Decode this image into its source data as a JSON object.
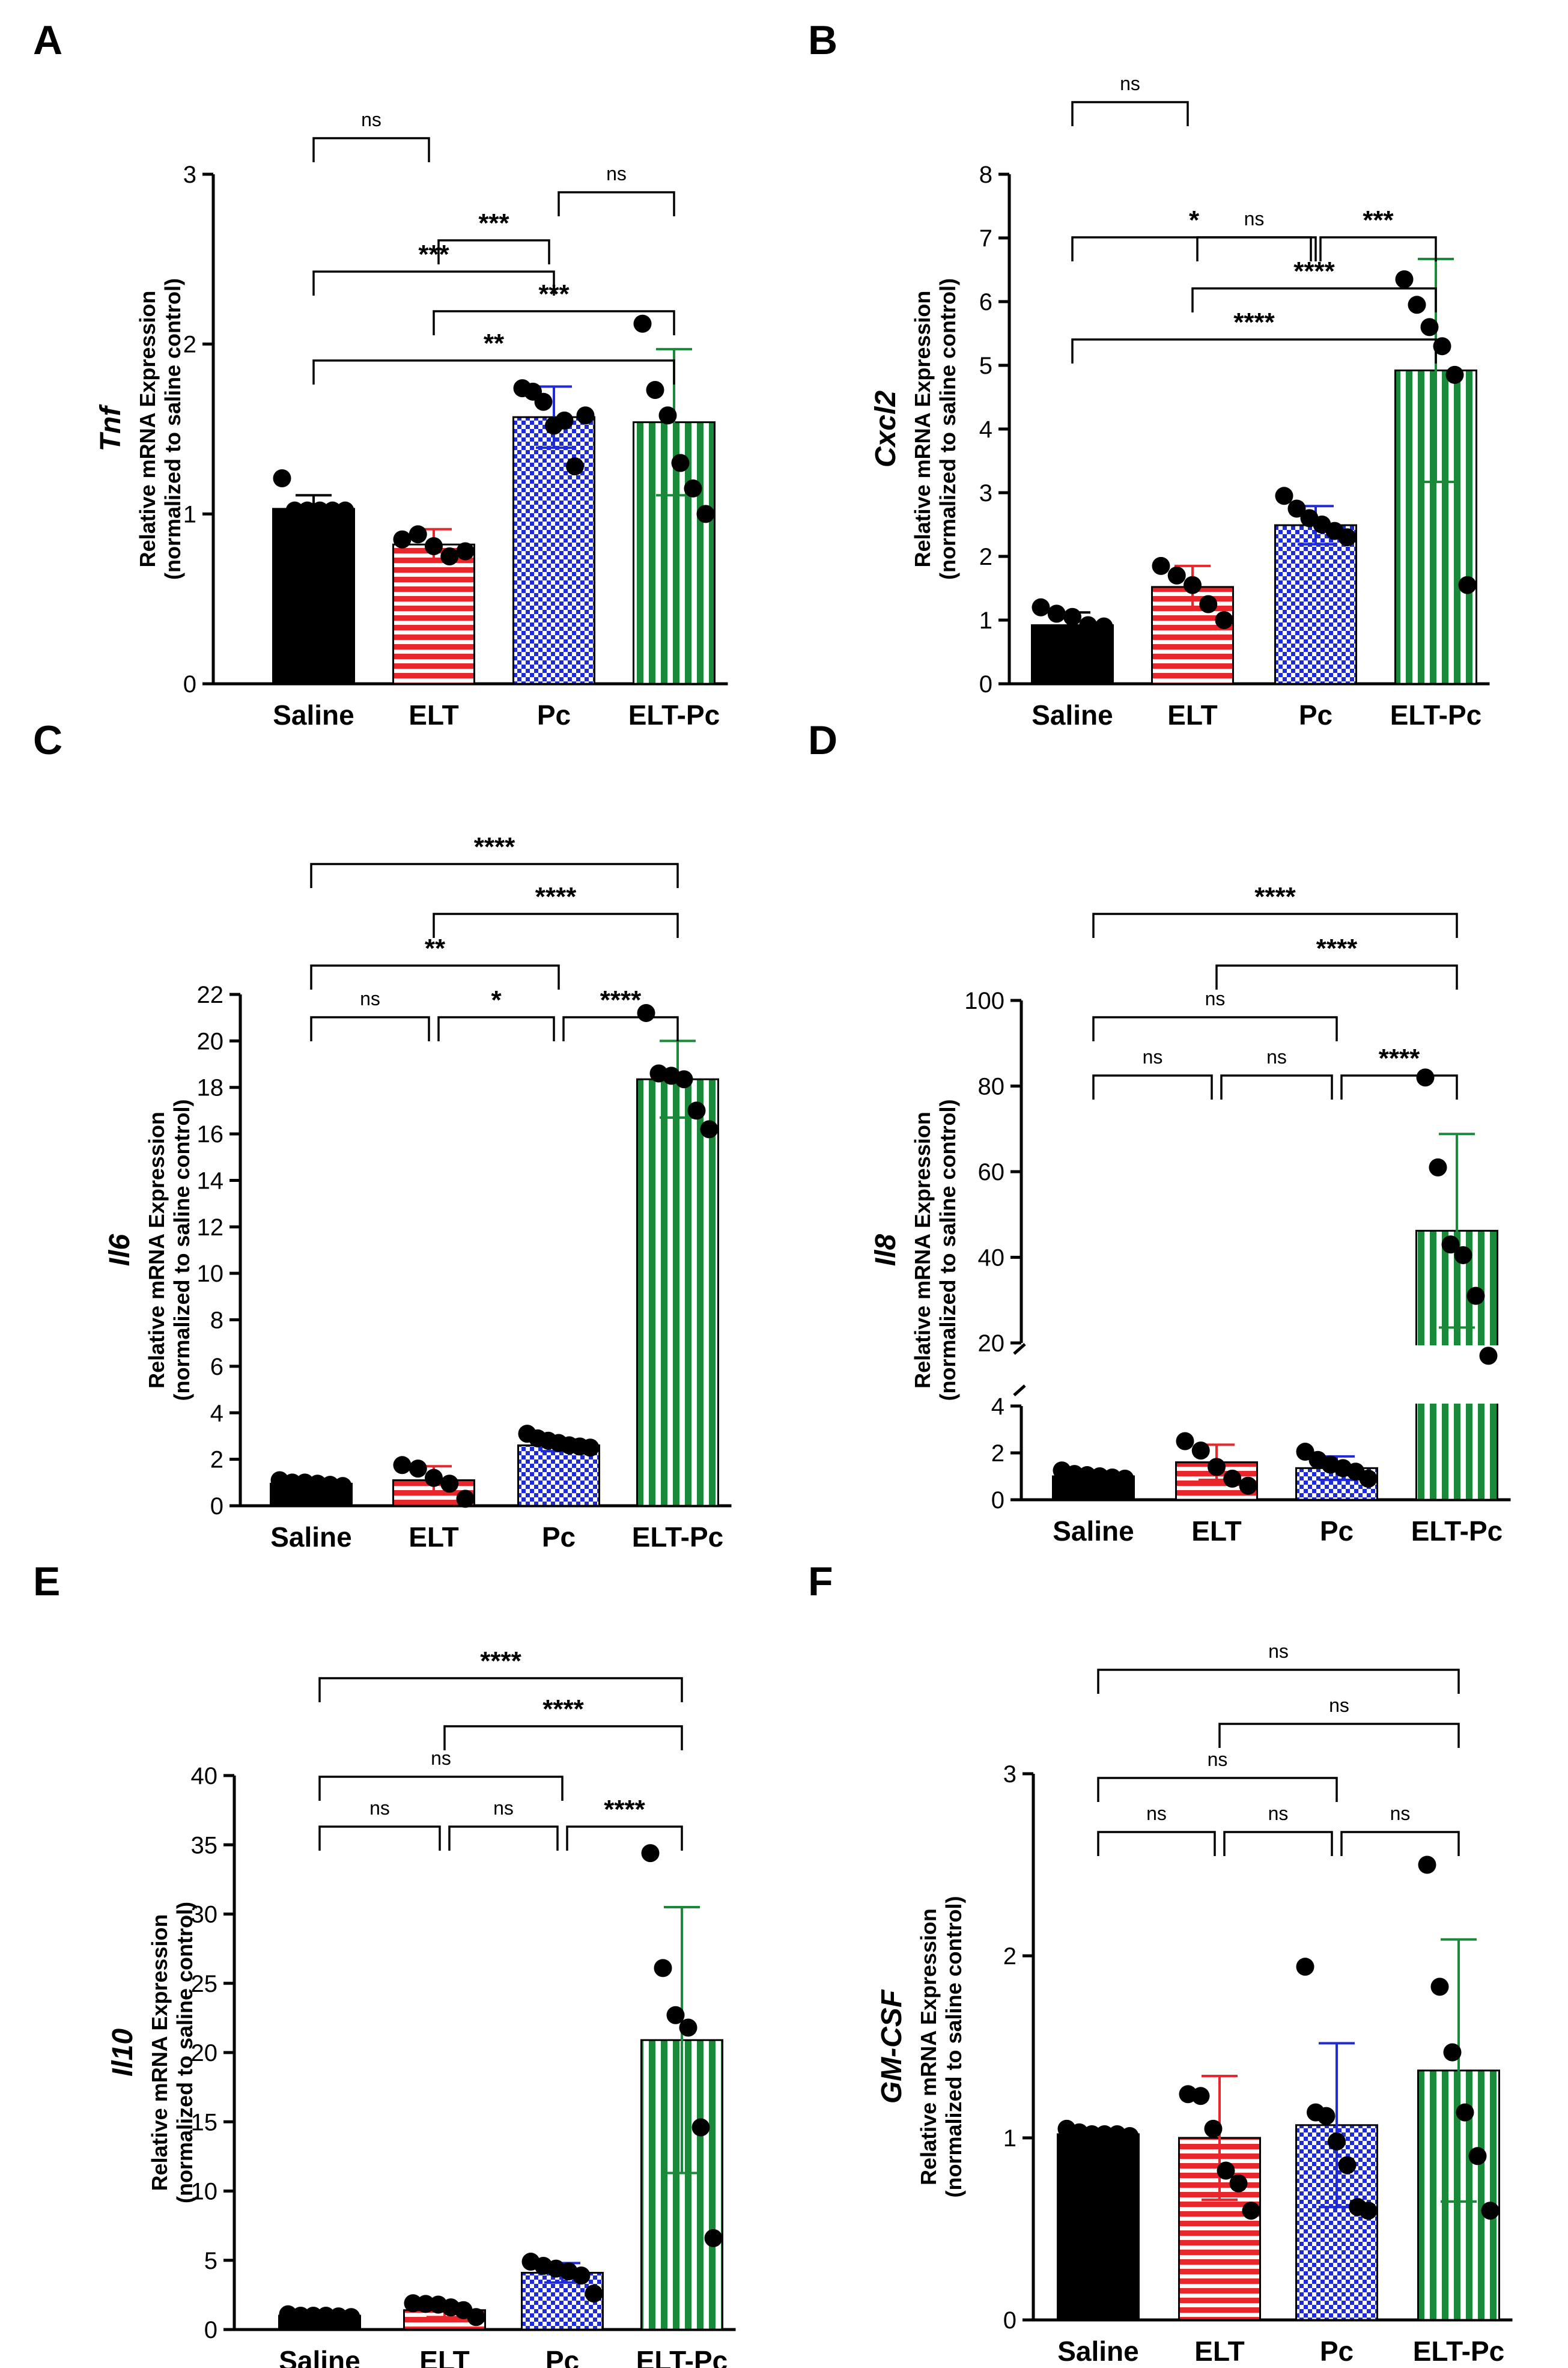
{
  "figure": {
    "categories": [
      "Saline",
      "ELT",
      "Pc",
      "ELT-Pc"
    ]
  },
  "colors": {
    "saline": "#000000",
    "elt": "#e8262b",
    "pc": "#1f2bd6",
    "eltpc": "#1a8a3a",
    "stroke": "#000000"
  },
  "chart_data": [
    {
      "panel": "A",
      "type": "bar",
      "gene": "Tnf",
      "ylabel_line1": "Relative mRNA Expression",
      "ylabel_line2": "(normalized to saline control)",
      "categories": [
        "Saline",
        "ELT",
        "Pc",
        "ELT-Pc"
      ],
      "ylim": [
        0,
        3
      ],
      "yticks": [
        0,
        1,
        2,
        3
      ],
      "values": [
        1.03,
        0.82,
        1.57,
        1.54
      ],
      "errors": [
        0.08,
        0.09,
        0.18,
        0.43
      ],
      "points": [
        [
          1.21,
          1.02,
          1.02,
          1.02,
          1.02,
          1.02
        ],
        [
          0.85,
          0.88,
          0.81,
          0.75,
          0.78
        ],
        [
          1.74,
          1.72,
          1.66,
          1.52,
          1.55,
          1.28,
          1.58
        ],
        [
          2.12,
          1.73,
          1.58,
          1.3,
          1.15,
          1.0
        ]
      ],
      "comparisons": [
        {
          "from": 0,
          "to": 3,
          "label": "**"
        },
        {
          "from": 1,
          "to": 3,
          "label": "***"
        },
        {
          "from": 0,
          "to": 2,
          "label": "***"
        },
        {
          "from": 0,
          "to": 1,
          "label": "ns"
        },
        {
          "from": 1,
          "to": 2,
          "label": "***"
        },
        {
          "from": 2,
          "to": 3,
          "label": "ns"
        }
      ]
    },
    {
      "panel": "B",
      "type": "bar",
      "gene": "Cxcl2",
      "ylabel_line1": "Relative mRNA Expression",
      "ylabel_line2": "(normalized to saline control)",
      "categories": [
        "Saline",
        "ELT",
        "Pc",
        "ELT-Pc"
      ],
      "ylim": [
        0,
        8
      ],
      "yticks": [
        0,
        1,
        2,
        3,
        4,
        5,
        6,
        7,
        8
      ],
      "values": [
        0.92,
        1.52,
        2.49,
        4.92
      ],
      "errors": [
        0.2,
        0.33,
        0.3,
        1.75
      ],
      "points": [
        [
          1.2,
          1.1,
          1.05,
          0.92,
          0.9
        ],
        [
          1.85,
          1.7,
          1.55,
          1.25,
          1.0
        ],
        [
          2.95,
          2.75,
          2.6,
          2.5,
          2.4,
          2.3
        ],
        [
          6.35,
          5.95,
          5.6,
          5.3,
          4.85,
          1.55
        ]
      ],
      "comparisons": [
        {
          "from": 0,
          "to": 3,
          "label": "****"
        },
        {
          "from": 1,
          "to": 3,
          "label": "****"
        },
        {
          "from": 0,
          "to": 2,
          "label": "*"
        },
        {
          "from": 0,
          "to": 1,
          "label": "ns"
        },
        {
          "from": 1,
          "to": 2,
          "label": "ns"
        },
        {
          "from": 2,
          "to": 3,
          "label": "***"
        }
      ]
    },
    {
      "panel": "C",
      "type": "bar",
      "gene": "Il6",
      "ylabel_line1": "Relative mRNA Expression",
      "ylabel_line2": "(normalized to saline control)",
      "categories": [
        "Saline",
        "ELT",
        "Pc",
        "ELT-Pc"
      ],
      "ylim": [
        0,
        22
      ],
      "yticks": [
        0,
        2,
        4,
        6,
        8,
        10,
        12,
        14,
        16,
        18,
        20,
        22
      ],
      "values": [
        0.95,
        1.1,
        2.6,
        18.35
      ],
      "errors": [
        0.2,
        0.6,
        0.25,
        1.65
      ],
      "points": [
        [
          1.1,
          1.0,
          1.0,
          0.95,
          0.9,
          0.85
        ],
        [
          1.75,
          1.6,
          1.2,
          0.95,
          0.3
        ],
        [
          3.1,
          2.9,
          2.8,
          2.7,
          2.6,
          2.55,
          2.5
        ],
        [
          21.2,
          18.6,
          18.5,
          18.35,
          17.0,
          16.2
        ]
      ],
      "comparisons": [
        {
          "from": 0,
          "to": 3,
          "label": "****"
        },
        {
          "from": 1,
          "to": 3,
          "label": "****"
        },
        {
          "from": 0,
          "to": 2,
          "label": "**"
        },
        {
          "from": 0,
          "to": 1,
          "label": "ns"
        },
        {
          "from": 1,
          "to": 2,
          "label": "*"
        },
        {
          "from": 2,
          "to": 3,
          "label": "****"
        }
      ]
    },
    {
      "panel": "D",
      "type": "bar",
      "gene": "Il8",
      "broken_axis": true,
      "ylabel_line1": "Relative mRNA Expression",
      "ylabel_line2": "(normalized to saline control)",
      "categories": [
        "Saline",
        "ELT",
        "Pc",
        "ELT-Pc"
      ],
      "ylim_lower": [
        0,
        4
      ],
      "ylim_upper": [
        0,
        100
      ],
      "yticks_lower": [
        0,
        2,
        4
      ],
      "yticks_upper": [
        20,
        40,
        60,
        80,
        100
      ],
      "values": [
        1.0,
        1.6,
        1.35,
        46.2
      ],
      "errors": [
        0.2,
        0.75,
        0.5,
        22.6
      ],
      "points": [
        [
          1.25,
          1.1,
          1.05,
          1.0,
          0.95,
          0.9
        ],
        [
          2.5,
          2.1,
          1.4,
          0.9,
          0.6
        ],
        [
          2.05,
          1.7,
          1.5,
          1.35,
          1.2,
          0.9
        ],
        [
          82,
          61,
          43,
          40.5,
          31,
          17
        ]
      ],
      "comparisons": [
        {
          "from": 0,
          "to": 3,
          "label": "****"
        },
        {
          "from": 1,
          "to": 3,
          "label": "****"
        },
        {
          "from": 0,
          "to": 2,
          "label": "ns"
        },
        {
          "from": 0,
          "to": 1,
          "label": "ns"
        },
        {
          "from": 1,
          "to": 2,
          "label": "ns"
        },
        {
          "from": 2,
          "to": 3,
          "label": "****"
        }
      ]
    },
    {
      "panel": "E",
      "type": "bar",
      "gene": "Il10",
      "ylabel_line1": "Relative mRNA Expression",
      "ylabel_line2": "(normalized to saline control)",
      "categories": [
        "Saline",
        "ELT",
        "Pc",
        "ELT-Pc"
      ],
      "ylim": [
        0,
        40
      ],
      "yticks": [
        0,
        5,
        10,
        15,
        20,
        25,
        30,
        35,
        40
      ],
      "values": [
        1.0,
        1.4,
        4.1,
        20.9
      ],
      "errors": [
        0.2,
        0.5,
        0.7,
        9.6
      ],
      "points": [
        [
          1.1,
          1.0,
          1.0,
          1.0,
          0.95,
          0.9
        ],
        [
          1.9,
          1.85,
          1.8,
          1.6,
          1.4,
          0.9
        ],
        [
          4.9,
          4.6,
          4.4,
          4.2,
          3.9,
          2.6
        ],
        [
          34.4,
          26.1,
          22.7,
          21.8,
          14.6,
          6.6
        ]
      ],
      "comparisons": [
        {
          "from": 0,
          "to": 3,
          "label": "****"
        },
        {
          "from": 1,
          "to": 3,
          "label": "****"
        },
        {
          "from": 0,
          "to": 2,
          "label": "ns"
        },
        {
          "from": 0,
          "to": 1,
          "label": "ns"
        },
        {
          "from": 1,
          "to": 2,
          "label": "ns"
        },
        {
          "from": 2,
          "to": 3,
          "label": "****"
        }
      ]
    },
    {
      "panel": "F",
      "type": "bar",
      "gene": "GM-CSF",
      "ylabel_line1": "Relative mRNA Expression",
      "ylabel_line2": "(normalized to saline control)",
      "categories": [
        "Saline",
        "ELT",
        "Pc",
        "ELT-Pc"
      ],
      "ylim": [
        0,
        3
      ],
      "yticks": [
        0,
        1,
        2,
        3
      ],
      "values": [
        1.02,
        1.0,
        1.07,
        1.37
      ],
      "errors": [
        0.03,
        0.34,
        0.45,
        0.72
      ],
      "points": [
        [
          1.05,
          1.03,
          1.02,
          1.02,
          1.02,
          1.01
        ],
        [
          1.24,
          1.23,
          1.05,
          0.82,
          0.75,
          0.6
        ],
        [
          1.94,
          1.14,
          1.12,
          0.98,
          0.85,
          0.62,
          0.6
        ],
        [
          2.5,
          1.83,
          1.47,
          1.14,
          0.9,
          0.6
        ]
      ],
      "comparisons": [
        {
          "from": 0,
          "to": 3,
          "label": "ns"
        },
        {
          "from": 1,
          "to": 3,
          "label": "ns"
        },
        {
          "from": 0,
          "to": 2,
          "label": "ns"
        },
        {
          "from": 0,
          "to": 1,
          "label": "ns"
        },
        {
          "from": 1,
          "to": 2,
          "label": "ns"
        },
        {
          "from": 2,
          "to": 3,
          "label": "ns"
        }
      ]
    }
  ]
}
